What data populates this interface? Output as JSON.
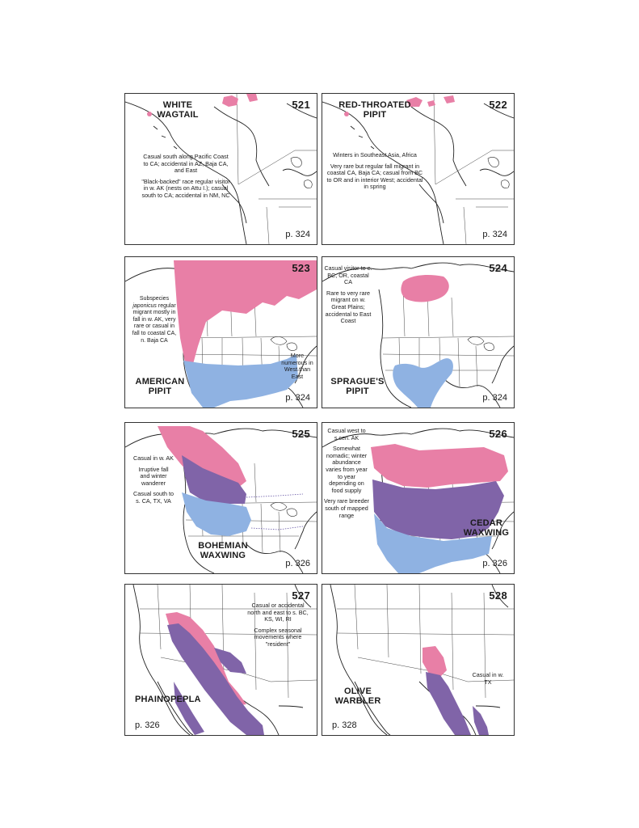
{
  "panels": [
    {
      "number": "521",
      "title": [
        "WHITE",
        "WAGTAIL"
      ],
      "notes": [
        "Casual south along Pacific Coast to CA; accidental in AZ, Baja CA, and East",
        "\"Black-backed\" race regular visitor in w. AK (nests on Attu I.); casual south to CA; accidental in NM, NC"
      ],
      "page_ref": "p. 324"
    },
    {
      "number": "522",
      "title": [
        "RED-THROATED",
        "PIPIT"
      ],
      "notes": [
        "Winters in Southeast Asia, Africa",
        "Very rare but regular fall migrant in coastal CA, Baja CA; casual from BC to OR and in interior West; accidental in spring"
      ],
      "page_ref": "p. 324"
    },
    {
      "number": "523",
      "title": [
        "AMERICAN",
        "PIPIT"
      ],
      "notes": [
        "Subspecies japonicus regular migrant mostly in fall in w. AK, very rare or casual in fall to coastal CA, n. Baja CA"
      ],
      "side_note": "More numerous in West than East",
      "page_ref": "p. 324"
    },
    {
      "number": "524",
      "title": [
        "SPRAGUE'S",
        "PIPIT"
      ],
      "notes": [
        "Casual visitor to e. BC, OR, coastal CA",
        "Rare to very rare migrant on w. Great Plains; accidental to East Coast"
      ],
      "page_ref": "p. 324"
    },
    {
      "number": "525",
      "title": [
        "BOHEMIAN",
        "WAXWING"
      ],
      "notes": [
        "Casual in w. AK",
        "Irruptive fall and winter wanderer",
        "Casual south to s. CA, TX, VA"
      ],
      "page_ref": "p. 326"
    },
    {
      "number": "526",
      "title": [
        "CEDAR",
        "WAXWING"
      ],
      "notes": [
        "Casual west to s.cen. AK",
        "Somewhat nomadic; winter abundance varies from year to year depending on food supply",
        "Very rare breeder south of mapped range"
      ],
      "page_ref": "p. 326"
    },
    {
      "number": "527",
      "title": [
        "PHAINOPEPLA"
      ],
      "notes": [
        "Casual or accidental north and east to s. BC, KS, WI, RI",
        "Complex seasonal movements where \"resident\""
      ],
      "page_ref": "p. 326"
    },
    {
      "number": "528",
      "title": [
        "OLIVE",
        "WARBLER"
      ],
      "notes": [
        "Casual in w. TX"
      ],
      "page_ref": "p. 328"
    }
  ],
  "legend_colors": {
    "breeding": "#e87fa6",
    "winter": "#8fb2e2",
    "year_round": "#8064a8"
  }
}
